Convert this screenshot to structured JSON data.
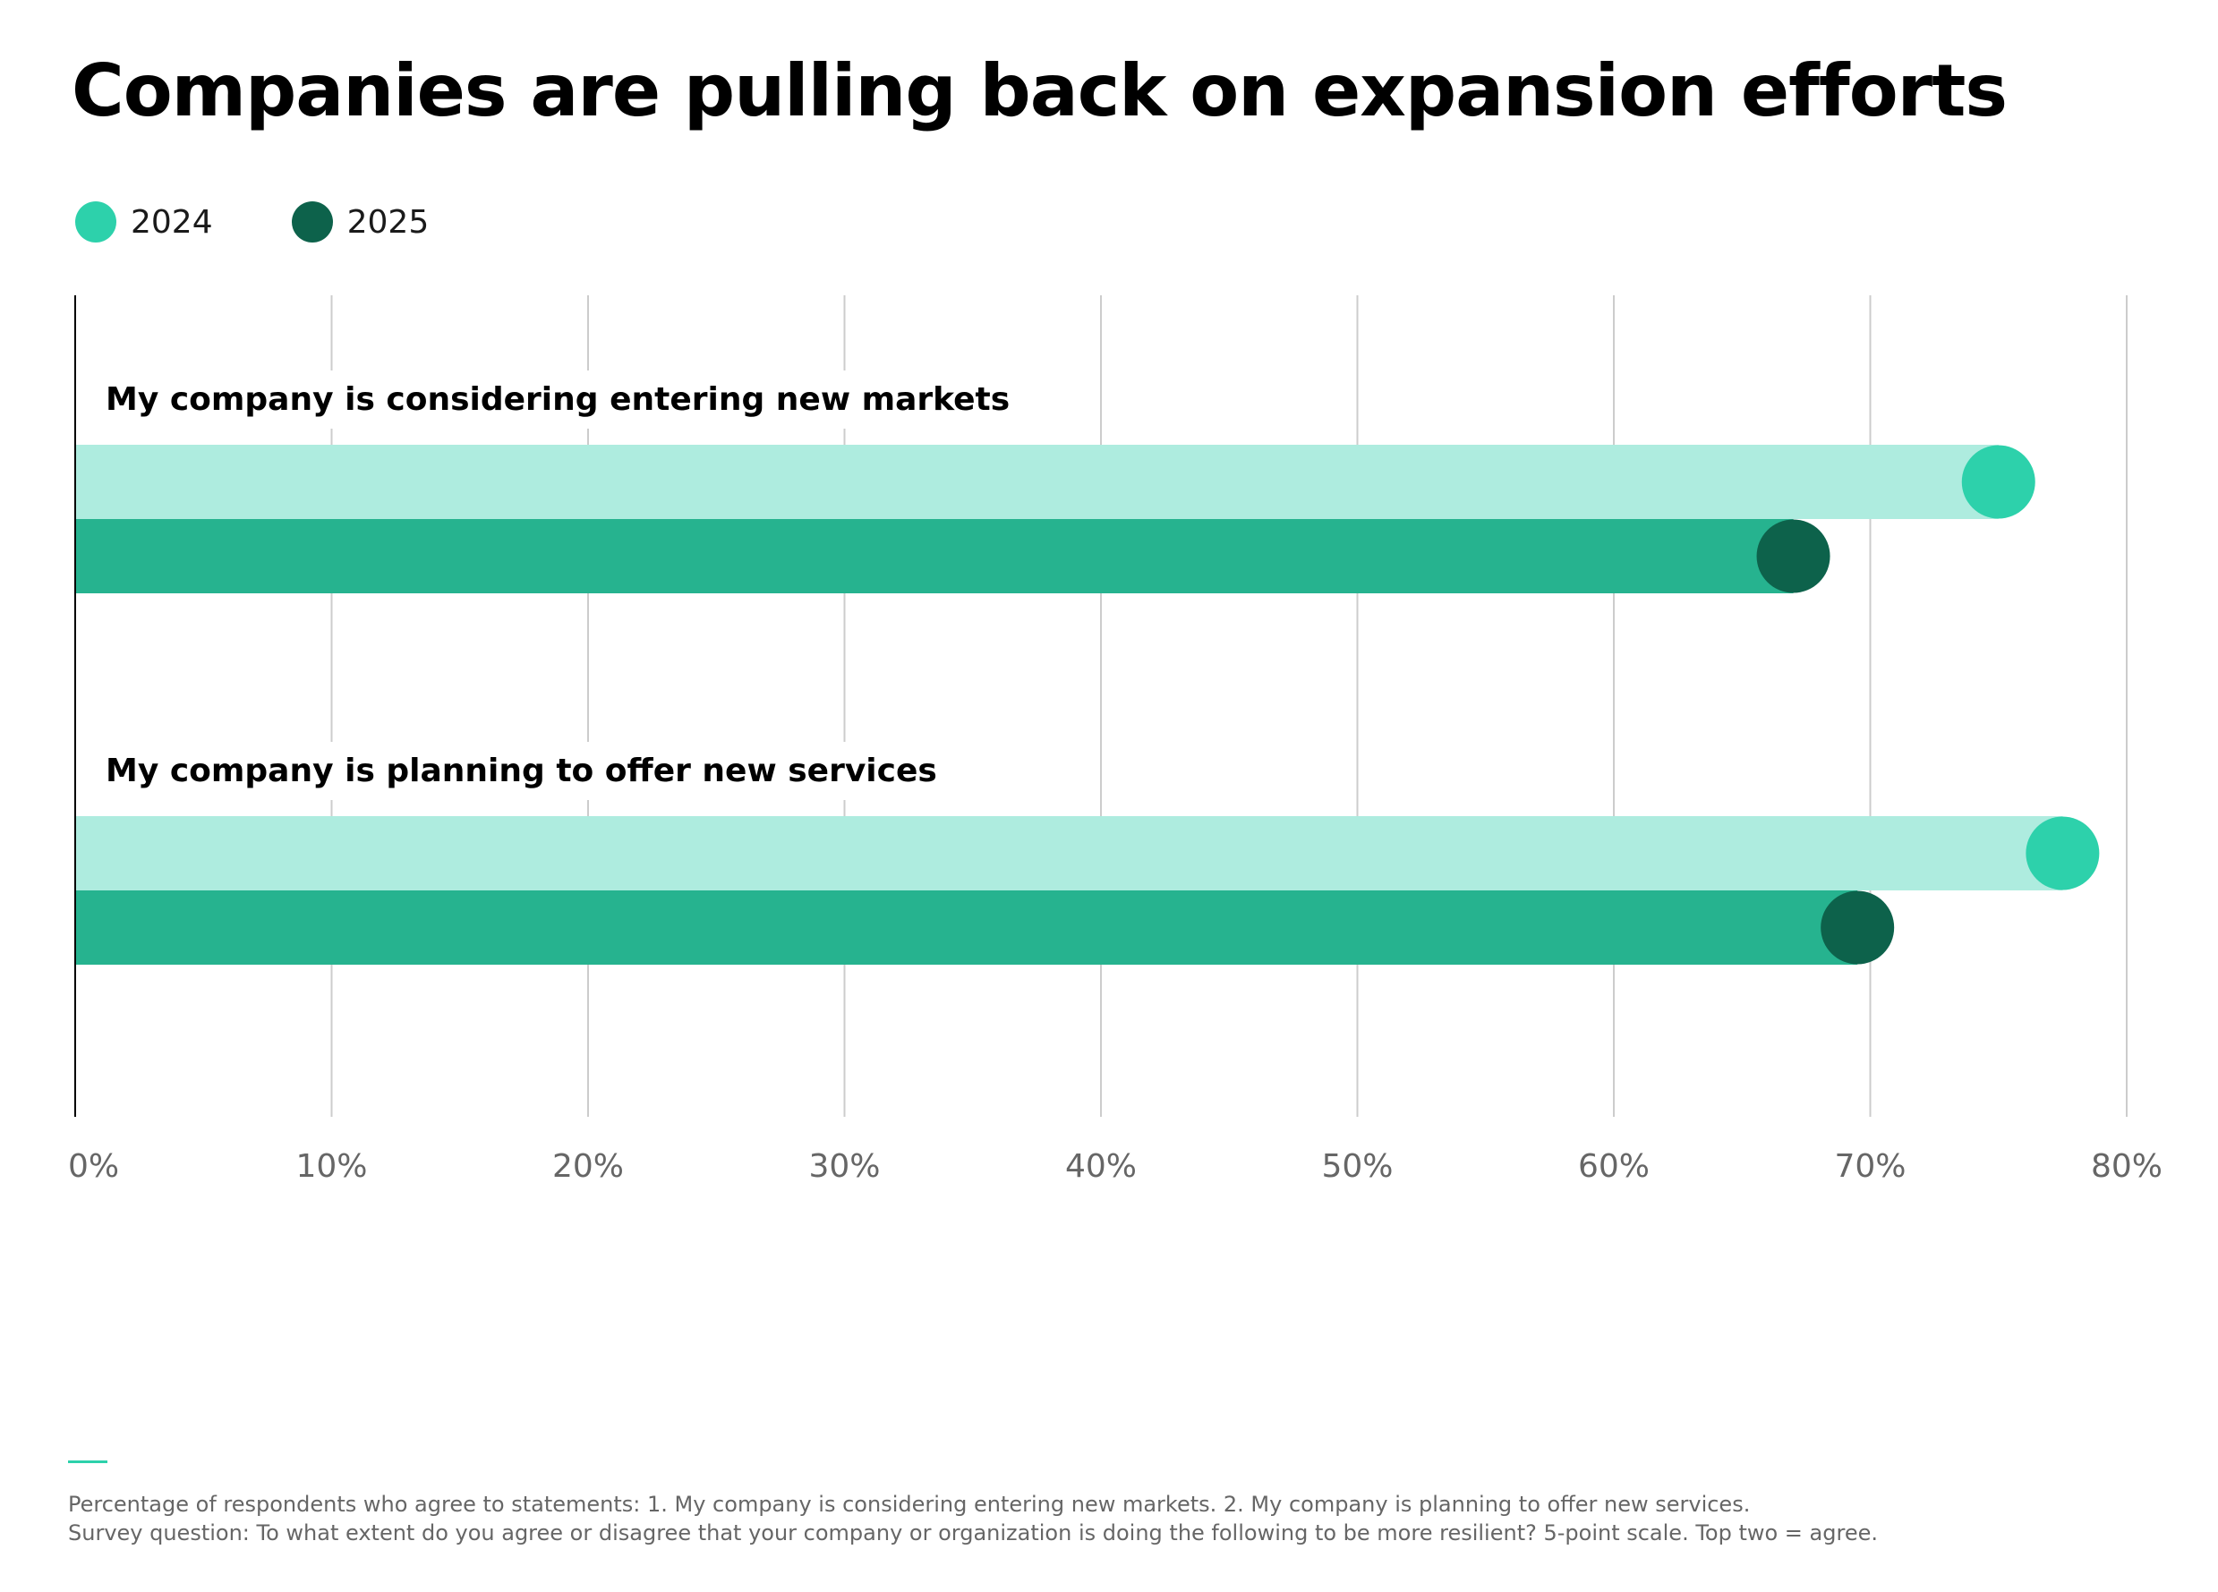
{
  "chart_data": {
    "type": "bar",
    "title": "Companies are pulling back on expansion efforts",
    "categories": [
      "My company is considering entering new markets",
      "My company is planning to offer new services"
    ],
    "series": [
      {
        "name": "2024",
        "values": [
          75,
          77.5
        ]
      },
      {
        "name": "2025",
        "values": [
          67,
          69.5
        ]
      }
    ],
    "xlabel": "",
    "ylabel": "",
    "xlim": [
      0,
      80
    ],
    "x_ticks": [
      0,
      10,
      20,
      30,
      40,
      50,
      60,
      70,
      80
    ],
    "x_tick_labels": [
      "0%",
      "10%",
      "20%",
      "30%",
      "40%",
      "50%",
      "60%",
      "70%",
      "80%"
    ],
    "orientation": "horizontal",
    "grid": true,
    "legend_placement": "top-left"
  },
  "colors": {
    "bar_2024": "#aeecdf",
    "dot_2024": "#2dd1ab",
    "bar_2025": "#26b38f",
    "dot_2025": "#0d624b",
    "gridline": "#cccccc",
    "axis": "#000000",
    "tick_text": "#666666",
    "footnote_rule": "#2dd1ab"
  },
  "footnote": {
    "line1": "Percentage of respondents who agree to statements: 1. My company is considering entering new markets. 2. My company is planning to offer new services.",
    "line2": "Survey question: To what extent do you agree or disagree that your company or organization is doing the following to be more resilient? 5-point scale. Top two = agree."
  }
}
